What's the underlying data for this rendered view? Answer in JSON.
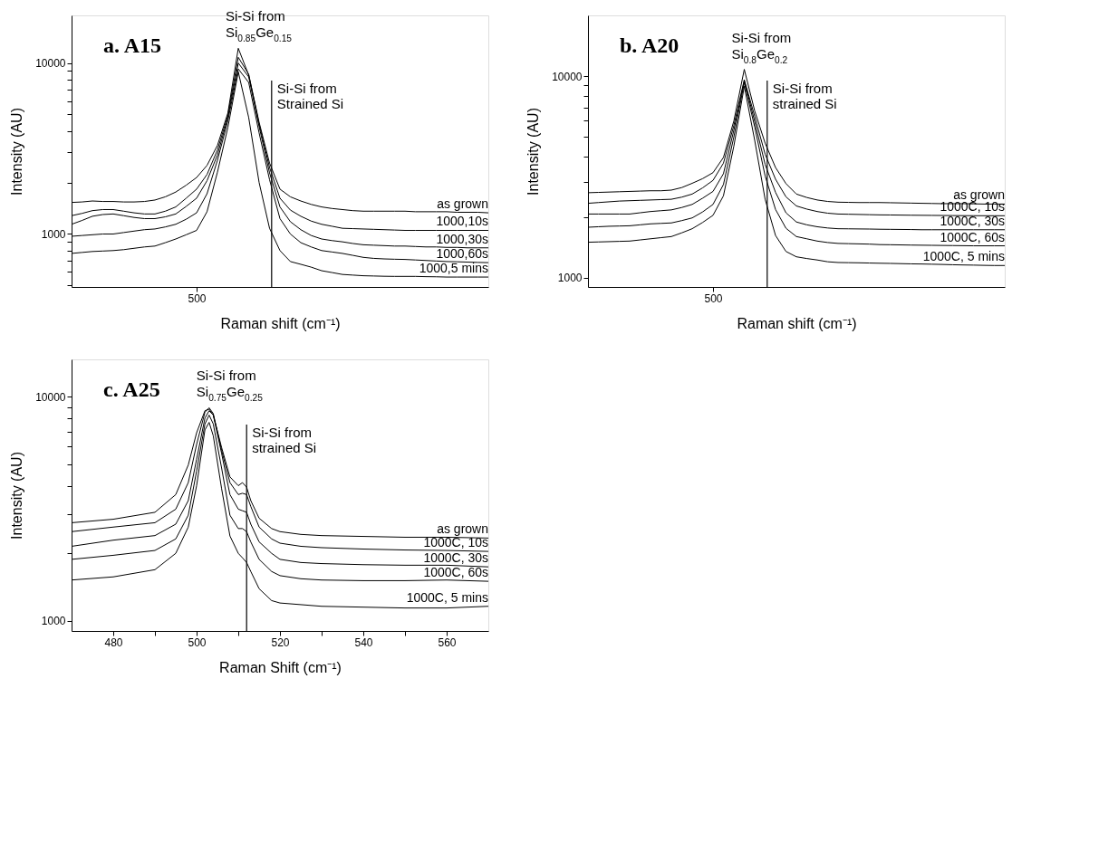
{
  "chart_data": [
    {
      "type": "line",
      "xlabel": "Raman shift (cm⁻¹)",
      "ylabel": "Intensity (AU)",
      "log": "y",
      "legend": false,
      "grid": false,
      "categories": [
        null,
        null,
        null,
        null,
        null,
        null,
        null,
        null,
        null,
        null,
        null,
        null,
        "500",
        null,
        null,
        null,
        null,
        null,
        null,
        null,
        null,
        null,
        null,
        null,
        null,
        null,
        null,
        null,
        null,
        null,
        null,
        null,
        null,
        null,
        null,
        null,
        null,
        null,
        null,
        null,
        null
      ],
      "ylim": [
        490,
        19000
      ],
      "yticks": [
        {
          "value": 500,
          "label": null
        },
        {
          "value": 600,
          "label": null
        },
        {
          "value": 700,
          "label": null
        },
        {
          "value": 800,
          "label": null
        },
        {
          "value": 900,
          "label": null
        },
        1000,
        {
          "value": 2000,
          "label": null
        },
        {
          "value": 3000,
          "label": null
        },
        {
          "value": 4000,
          "label": null
        },
        {
          "value": 5000,
          "label": null
        },
        {
          "value": 6000,
          "label": null
        },
        {
          "value": 7000,
          "label": null
        },
        {
          "value": 8000,
          "label": null
        },
        {
          "value": 9000,
          "label": null
        },
        10000
      ],
      "series": [
        {
          "name": "as grown",
          "color": "#000000",
          "values": [
            1530,
            1540,
            1560,
            1550,
            1550,
            1540,
            1540,
            1550,
            1580,
            1650,
            1760,
            1930,
            2140,
            2520,
            3300,
            5100,
            12200,
            8500,
            4500,
            2600,
            1830,
            1650,
            1560,
            1490,
            1440,
            1410,
            1390,
            1370,
            1360,
            1360,
            1360,
            1360,
            1360,
            1350,
            1350,
            1350,
            1350,
            1340,
            1340,
            1340,
            1330
          ]
        },
        {
          "name": "1000,10s",
          "color": "#000000",
          "values": [
            1280,
            1320,
            1370,
            1390,
            1390,
            1360,
            1330,
            1310,
            1310,
            1360,
            1440,
            1620,
            1830,
            2230,
            3100,
            4950,
            10800,
            8600,
            4400,
            2450,
            1620,
            1380,
            1270,
            1190,
            1140,
            1110,
            1080,
            1075,
            1070,
            1065,
            1060,
            1055,
            1050,
            1050,
            1050,
            1050,
            1050,
            1050,
            1050,
            1050,
            1050
          ]
        },
        {
          "name": "1000,30s",
          "color": "#000000",
          "values": [
            1140,
            1200,
            1270,
            1300,
            1310,
            1280,
            1250,
            1230,
            1230,
            1260,
            1310,
            1450,
            1620,
            2050,
            2900,
            4800,
            10000,
            8300,
            4250,
            2280,
            1440,
            1180,
            1060,
            980,
            935,
            915,
            900,
            880,
            865,
            860,
            855,
            850,
            850,
            845,
            840,
            840,
            835,
            835,
            830,
            830,
            830
          ]
        },
        {
          "name": "1000,60s",
          "color": "#000000",
          "values": [
            970,
            980,
            990,
            1000,
            1000,
            1020,
            1040,
            1060,
            1070,
            1100,
            1140,
            1220,
            1330,
            1720,
            2700,
            4600,
            9240,
            7700,
            3900,
            2080,
            1230,
            1000,
            890,
            840,
            800,
            785,
            770,
            750,
            730,
            720,
            715,
            712,
            710,
            705,
            700,
            695,
            690,
            688,
            685,
            682,
            680
          ]
        },
        {
          "name": "1000,5 mins",
          "color": "#000000",
          "values": [
            770,
            780,
            790,
            795,
            800,
            810,
            825,
            840,
            850,
            890,
            935,
            990,
            1050,
            1350,
            2300,
            4200,
            8880,
            4800,
            2000,
            1080,
            800,
            690,
            665,
            640,
            610,
            595,
            580,
            575,
            570,
            568,
            566,
            565,
            565,
            565,
            563,
            562,
            560,
            560,
            560,
            560,
            560
          ]
        }
      ],
      "annotations": [
        "a. A15",
        "Si-Si from\nSi$_{0.85}$Ge$_{0.15}$",
        "Si-Si from\nStrained Si"
      ]
    },
    {
      "type": "line",
      "xlabel": "Raman shift (cm⁻¹)",
      "ylabel": "Intensity (AU)",
      "log": "y",
      "legend": false,
      "grid": false,
      "categories": [
        null,
        null,
        null,
        null,
        null,
        null,
        null,
        null,
        null,
        null,
        null,
        null,
        "500",
        null,
        null,
        null,
        null,
        null,
        null,
        null,
        null,
        null,
        null,
        null,
        null,
        null,
        null,
        null,
        null,
        null,
        null,
        null,
        null,
        null,
        null,
        null,
        null,
        null,
        null,
        null,
        null
      ],
      "ylim": [
        900,
        20000
      ],
      "yticks": [
        1000,
        {
          "value": 2000,
          "label": null
        },
        {
          "value": 3000,
          "label": null
        },
        {
          "value": 4000,
          "label": null
        },
        {
          "value": 5000,
          "label": null
        },
        {
          "value": 6000,
          "label": null
        },
        {
          "value": 7000,
          "label": null
        },
        {
          "value": 8000,
          "label": null
        },
        {
          "value": 9000,
          "label": null
        },
        10000
      ],
      "series": [
        {
          "name": "as grown",
          "color": "#000000",
          "values": [
            2640,
            2650,
            2660,
            2670,
            2680,
            2690,
            2700,
            2700,
            2720,
            2800,
            2940,
            3100,
            3320,
            3950,
            6000,
            10800,
            6720,
            4650,
            3520,
            2930,
            2600,
            2500,
            2430,
            2390,
            2370,
            2365,
            2360,
            2360,
            2360,
            2355,
            2350,
            2345,
            2340,
            2335,
            2330,
            2330,
            2330,
            2325,
            2320,
            2320,
            2320
          ]
        },
        {
          "name": "1000C, 10s",
          "color": "#000000",
          "values": [
            2340,
            2360,
            2380,
            2400,
            2410,
            2420,
            2430,
            2440,
            2450,
            2510,
            2600,
            2790,
            3040,
            3700,
            5700,
            9600,
            6320,
            4100,
            3080,
            2520,
            2270,
            2190,
            2130,
            2090,
            2070,
            2065,
            2060,
            2055,
            2050,
            2048,
            2045,
            2042,
            2040,
            2038,
            2036,
            2034,
            2032,
            2031,
            2030,
            2030,
            2030
          ]
        },
        {
          "name": "1000C, 30s",
          "color": "#000000",
          "values": [
            2070,
            2070,
            2070,
            2070,
            2070,
            2100,
            2130,
            2150,
            2170,
            2230,
            2310,
            2480,
            2680,
            3280,
            5400,
            9500,
            5950,
            3650,
            2650,
            2100,
            1890,
            1830,
            1790,
            1765,
            1750,
            1748,
            1746,
            1744,
            1740,
            1738,
            1736,
            1734,
            1730,
            1730,
            1730,
            1730,
            1730,
            1730,
            1730,
            1730,
            1730
          ]
        },
        {
          "name": "1000C, 60s",
          "color": "#000000",
          "values": [
            1780,
            1790,
            1800,
            1805,
            1810,
            1830,
            1850,
            1860,
            1870,
            1920,
            1980,
            2120,
            2310,
            2900,
            5000,
            9300,
            5590,
            3200,
            2180,
            1760,
            1600,
            1560,
            1520,
            1495,
            1480,
            1476,
            1472,
            1468,
            1460,
            1458,
            1455,
            1452,
            1450,
            1448,
            1446,
            1444,
            1442,
            1440,
            1440,
            1440,
            1440
          ]
        },
        {
          "name": "1000C, 5 mins",
          "color": "#000000",
          "values": [
            1500,
            1505,
            1510,
            1515,
            1520,
            1540,
            1560,
            1580,
            1600,
            1670,
            1750,
            1880,
            2040,
            2550,
            4500,
            8900,
            4800,
            2450,
            1620,
            1350,
            1270,
            1245,
            1225,
            1200,
            1190,
            1188,
            1186,
            1183,
            1180,
            1178,
            1175,
            1172,
            1170,
            1167,
            1164,
            1160,
            1157,
            1155,
            1152,
            1150,
            1150
          ]
        }
      ],
      "annotations": [
        "b. A20",
        "Si-Si from\nSi$_{0.8}$Ge$_{0.2}$",
        "Si-Si from\nstrained Si"
      ]
    },
    {
      "type": "line",
      "xlabel": "Raman Shift (cm⁻¹)",
      "ylabel": "Intensity (AU)",
      "log": "y",
      "legend": false,
      "grid": false,
      "x": [
        470,
        480,
        490,
        495,
        498,
        500,
        502,
        503,
        504,
        506,
        508,
        510,
        511,
        512,
        513,
        515,
        518,
        520,
        525,
        530,
        540,
        550,
        560,
        570
      ],
      "xlim": [
        470,
        570
      ],
      "xticks": [
        480,
        {
          "value": 490,
          "label": null
        },
        500,
        {
          "value": 510,
          "label": null
        },
        520,
        {
          "value": 530,
          "label": null
        },
        540,
        {
          "value": 550,
          "label": null
        },
        560
      ],
      "ylim": [
        900,
        14700
      ],
      "yticks": [
        1000,
        {
          "value": 2000,
          "label": null
        },
        {
          "value": 3000,
          "label": null
        },
        {
          "value": 4000,
          "label": null
        },
        {
          "value": 5000,
          "label": null
        },
        {
          "value": 6000,
          "label": null
        },
        {
          "value": 7000,
          "label": null
        },
        {
          "value": 8000,
          "label": null
        },
        {
          "value": 9000,
          "label": null
        },
        10000
      ],
      "series": [
        {
          "name": "as grown",
          "color": "#000000",
          "values": [
            2740,
            2840,
            3050,
            3660,
            4960,
            6910,
            8670,
            8810,
            8290,
            5940,
            4390,
            4010,
            4140,
            3950,
            3440,
            2870,
            2580,
            2500,
            2430,
            2400,
            2380,
            2360,
            2360,
            2340
          ]
        },
        {
          "name": "1000C, 10s",
          "color": "#000000",
          "values": [
            2500,
            2620,
            2740,
            3150,
            4140,
            6130,
            8540,
            8940,
            8420,
            5770,
            4140,
            3660,
            3710,
            3660,
            3240,
            2620,
            2320,
            2220,
            2150,
            2120,
            2090,
            2070,
            2060,
            2040
          ]
        },
        {
          "name": "1000C, 30s",
          "color": "#000000",
          "values": [
            2150,
            2290,
            2400,
            2700,
            3440,
            5260,
            8040,
            8670,
            8290,
            5590,
            3660,
            3150,
            3100,
            3050,
            2700,
            2250,
            2000,
            1880,
            1820,
            1800,
            1780,
            1770,
            1770,
            1740
          ]
        },
        {
          "name": "1000C, 60s",
          "color": "#000000",
          "values": [
            1880,
            1960,
            2060,
            2320,
            2960,
            4660,
            7570,
            8290,
            7570,
            4810,
            2960,
            2580,
            2580,
            2500,
            2250,
            1880,
            1660,
            1590,
            1540,
            1520,
            1510,
            1510,
            1520,
            1500
          ]
        },
        {
          "name": "1000C, 5 mins",
          "color": "#000000",
          "values": [
            1520,
            1570,
            1690,
            2000,
            2620,
            4010,
            7120,
            7690,
            6700,
            3890,
            2390,
            2000,
            1910,
            1820,
            1660,
            1390,
            1230,
            1200,
            1180,
            1160,
            1150,
            1140,
            1140,
            1160
          ]
        }
      ],
      "ref_lines": [
        {
          "axis": "x",
          "value": 512,
          "label": "Si-Si from\nstrained Si"
        }
      ],
      "annotations": [
        "c. A25",
        {
          "text": "Si-Si from\nSi$_{0.75}$Ge$_{0.25}$",
          "x": 503,
          "y": 8940
        }
      ]
    }
  ]
}
